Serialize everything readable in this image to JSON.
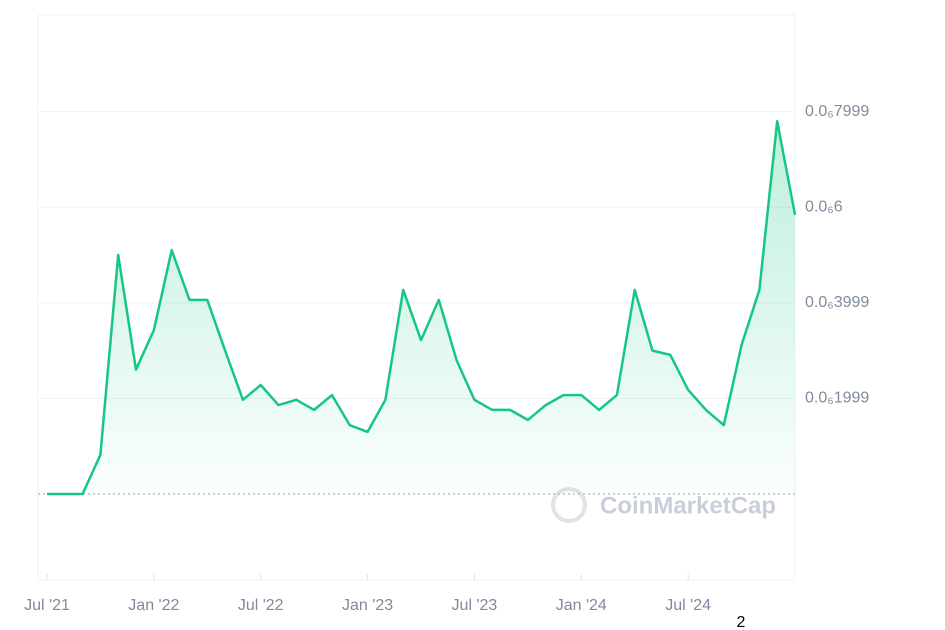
{
  "chart_data": {
    "type": "area",
    "x": [
      "2021-07",
      "2021-08",
      "2021-09",
      "2021-10",
      "2021-11",
      "2021-12",
      "2022-01",
      "2022-02",
      "2022-03",
      "2022-04",
      "2022-05",
      "2022-06",
      "2022-07",
      "2022-08",
      "2022-09",
      "2022-10",
      "2022-11",
      "2022-12",
      "2023-01",
      "2023-02",
      "2023-03",
      "2023-04",
      "2023-05",
      "2023-06",
      "2023-07",
      "2023-08",
      "2023-09",
      "2023-10",
      "2023-11",
      "2023-12",
      "2024-01",
      "2024-02",
      "2024-03",
      "2024-04",
      "2024-05",
      "2024-06",
      "2024-07",
      "2024-08",
      "2024-09",
      "2024-10",
      "2024-11",
      "2024-12",
      "2025-01"
    ],
    "series": [
      {
        "color": "#16c784",
        "values": [
          0,
          0,
          0,
          8.2e-08,
          5e-07,
          2.6e-07,
          3.43e-07,
          5.1e-07,
          4.06e-07,
          4.06e-07,
          3e-07,
          1.97e-07,
          2.28e-07,
          1.86e-07,
          1.97e-07,
          1.76e-07,
          2.07e-07,
          1.44e-07,
          1.3e-07,
          1.97e-07,
          4.27e-07,
          3.22e-07,
          4.06e-07,
          2.8e-07,
          1.97e-07,
          1.76e-07,
          1.76e-07,
          1.55e-07,
          1.86e-07,
          2.07e-07,
          2.07e-07,
          1.76e-07,
          2.07e-07,
          4.27e-07,
          3e-07,
          2.91e-07,
          2.18e-07,
          1.76e-07,
          1.44e-07,
          3.12e-07,
          4.27e-07,
          7.8e-07,
          5.84e-07
        ]
      }
    ],
    "xlim": [
      "2021-07",
      "2025-01"
    ],
    "xticks": [
      {
        "value": "2021-07",
        "label": "Jul '21"
      },
      {
        "value": "2022-01",
        "label": "Jan '22"
      },
      {
        "value": "2022-07",
        "label": "Jul '22"
      },
      {
        "value": "2023-01",
        "label": "Jan '23"
      },
      {
        "value": "2023-07",
        "label": "Jul '23"
      },
      {
        "value": "2024-01",
        "label": "Jan '24"
      },
      {
        "value": "2024-07",
        "label": "Jul '24"
      }
    ],
    "ylim": [
      0,
      1e-06
    ],
    "yticks": [
      {
        "value": 1.999e-07,
        "label": "0.0₆1999"
      },
      {
        "value": 3.999e-07,
        "label": "0.0₆3999"
      },
      {
        "value": 6e-07,
        "label": "0.0₆6"
      },
      {
        "value": 7.999e-07,
        "label": "0.0₆7999"
      }
    ],
    "grid": true,
    "watermark": "CoinMarketCap",
    "annotation": "2"
  }
}
